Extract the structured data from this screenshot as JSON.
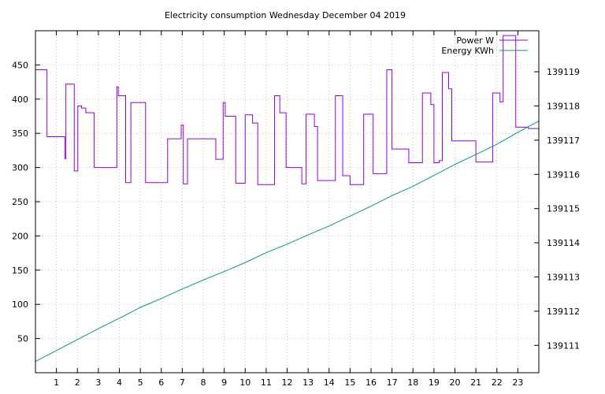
{
  "chart_data": {
    "type": "line",
    "title": "Electricity consumption Wednesday December 04 2019",
    "xlabel": "",
    "ylabel": "",
    "y2label": "",
    "grid": true,
    "legend_position": "top-right",
    "x_range": [
      0,
      24
    ],
    "x_ticks": [
      1,
      2,
      3,
      4,
      5,
      6,
      7,
      8,
      9,
      10,
      11,
      12,
      13,
      14,
      15,
      16,
      17,
      18,
      19,
      20,
      21,
      22,
      23
    ],
    "ylim": [
      0,
      500
    ],
    "y_ticks": [
      50,
      100,
      150,
      200,
      250,
      300,
      350,
      400,
      450
    ],
    "y2lim": [
      139110.2,
      139120.2
    ],
    "y2_ticks": [
      139111,
      139112,
      139113,
      139114,
      139115,
      139116,
      139117,
      139118,
      139119
    ],
    "series": [
      {
        "name": "Power W",
        "axis": "y",
        "color": "#9400d3",
        "step": true,
        "x": [
          0,
          0.55,
          1.4,
          1.45,
          1.85,
          2.02,
          2.2,
          2.4,
          2.8,
          3.3,
          3.88,
          3.95,
          4.3,
          4.55,
          4.7,
          5.25,
          5.5,
          6.3,
          6.95,
          7.05,
          7.25,
          8.6,
          8.95,
          9.05,
          9.55,
          10.0,
          10.35,
          10.6,
          11.0,
          11.4,
          11.65,
          11.95,
          12.7,
          12.9,
          13.3,
          13.45,
          14.3,
          14.65,
          15.0,
          15.65,
          16.1,
          16.25,
          16.75,
          17.0,
          17.45,
          17.8,
          18.45,
          18.85,
          19.0,
          19.25,
          19.4,
          19.7,
          19.85,
          20.25,
          21.0,
          21.8,
          22.15,
          22.3,
          22.5,
          22.9,
          23.5,
          24.0
        ],
        "y": [
          443,
          345,
          313,
          422,
          295,
          390,
          387,
          380,
          300,
          300,
          418,
          405,
          278,
          395,
          395,
          278,
          278,
          342,
          362,
          276,
          342,
          312,
          395,
          375,
          277,
          377,
          365,
          275,
          275,
          405,
          380,
          300,
          276,
          378,
          360,
          281,
          405,
          288,
          275,
          378,
          291,
          291,
          443,
          327,
          327,
          307,
          409,
          392,
          307,
          310,
          439,
          415,
          339,
          339,
          308,
          409,
          396,
          493,
          493,
          359,
          357,
          357
        ]
      },
      {
        "name": "Energy KWh",
        "axis": "y2",
        "color": "#009e73",
        "step": false,
        "x": [
          0,
          1,
          2,
          3,
          4,
          5,
          6,
          7,
          8,
          9,
          10,
          11,
          12,
          13,
          14,
          15,
          16,
          17,
          18,
          19,
          20,
          21,
          22,
          23,
          24
        ],
        "y": [
          139110.53,
          139110.85,
          139111.17,
          139111.49,
          139111.79,
          139112.11,
          139112.37,
          139112.65,
          139112.91,
          139113.16,
          139113.42,
          139113.71,
          139113.96,
          139114.23,
          139114.49,
          139114.78,
          139115.07,
          139115.38,
          139115.65,
          139115.97,
          139116.29,
          139116.58,
          139116.88,
          139117.23,
          139117.56
        ]
      }
    ]
  }
}
